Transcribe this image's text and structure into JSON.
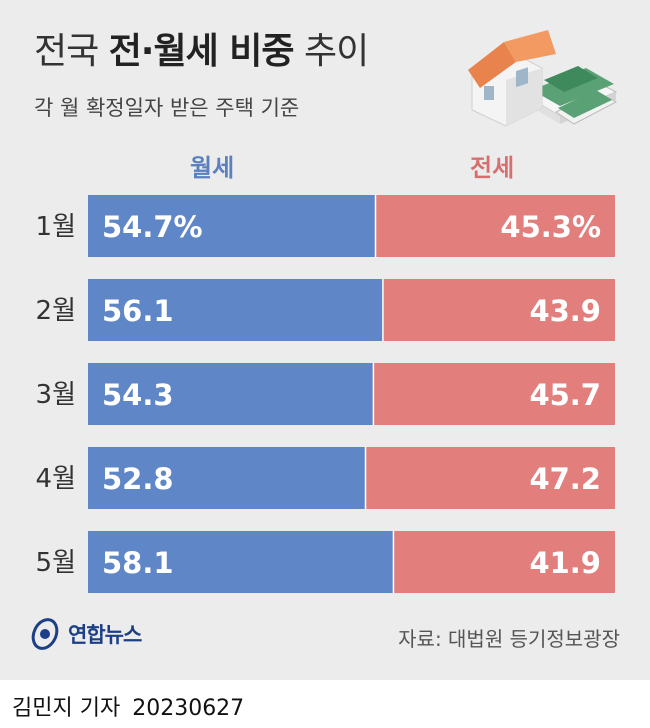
{
  "title_regular_1": "전국 ",
  "title_bold": "전·월세 비중",
  "title_regular_2": " 추이",
  "subtitle": "각 월 확정일자 받은 주택 기준",
  "source": "자료: 대법원 등기정보광장",
  "logo_text": "연합뉴스",
  "byline": {
    "author": "김민지 기자",
    "date": "20230627"
  },
  "colors": {
    "monthly_rent": "#5f86c6",
    "jeonse": "#e27f7c",
    "background": "#ececec"
  },
  "chart_data": {
    "type": "bar",
    "stacked": "100%",
    "orientation": "horizontal",
    "categories": [
      "1월",
      "2월",
      "3월",
      "4월",
      "5월"
    ],
    "series": [
      {
        "name": "월세",
        "values": [
          54.7,
          56.1,
          54.3,
          52.8,
          58.1
        ],
        "labels": [
          "54.7%",
          "56.1",
          "54.3",
          "52.8",
          "58.1"
        ]
      },
      {
        "name": "전세",
        "values": [
          45.3,
          43.9,
          45.7,
          47.2,
          41.9
        ],
        "labels": [
          "45.3%",
          "43.9",
          "45.7",
          "47.2",
          "41.9"
        ]
      }
    ],
    "xlim": [
      0,
      100
    ],
    "legend_position": "top"
  }
}
